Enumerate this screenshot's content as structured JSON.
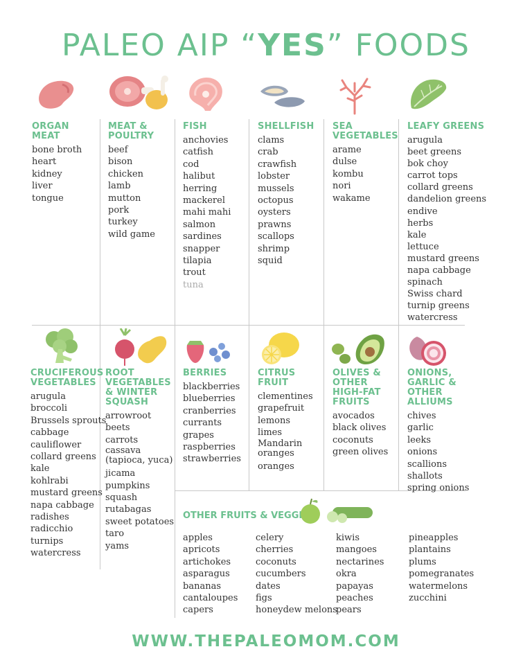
{
  "title": {
    "prefix": "PALEO AIP “",
    "emphasis": "YES",
    "suffix": "” FOODS"
  },
  "footer": "WWW.THEPALEOMOM.COM",
  "top_row": [
    {
      "heading": "ORGAN MEAT",
      "items": [
        "bone broth",
        "heart",
        "kidney",
        "liver",
        "tongue"
      ]
    },
    {
      "heading": "MEAT & POULTRY",
      "items": [
        "beef",
        "bison",
        "chicken",
        "lamb",
        "mutton",
        "pork",
        "turkey",
        "wild game"
      ]
    },
    {
      "heading": "FISH",
      "items": [
        "anchovies",
        "catfish",
        "cod",
        "halibut",
        "herring",
        "mackerel",
        "mahi mahi",
        "salmon",
        "sardines",
        "snapper",
        "tilapia",
        "trout",
        "tuna"
      ]
    },
    {
      "heading": "SHELLFISH",
      "items": [
        "clams",
        "crab",
        "crawfish",
        "lobster",
        "mussels",
        "octopus",
        "oysters",
        "prawns",
        "scallops",
        "shrimp",
        "squid"
      ]
    },
    {
      "heading": "SEA VEGETABLES",
      "items": [
        "arame",
        "dulse",
        "kombu",
        "nori",
        "wakame"
      ]
    },
    {
      "heading": "LEAFY GREENS",
      "items": [
        "arugula",
        "beet greens",
        "bok choy",
        "carrot tops",
        "collard greens",
        "dandelion greens",
        "endive",
        "herbs",
        "kale",
        "lettuce",
        "mustard greens",
        "napa cabbage",
        "spinach",
        "Swiss chard",
        "turnip greens",
        "watercress"
      ]
    }
  ],
  "bottom_row": [
    {
      "heading": "CRUCIFEROUS VEGETABLES",
      "items": [
        "arugula",
        "broccoli",
        "Brussels sprouts",
        "cabbage",
        "cauliflower",
        "collard greens",
        "kale",
        "kohlrabi",
        "mustard greens",
        "napa cabbage",
        "radishes",
        "radicchio",
        "turnips",
        "watercress"
      ]
    },
    {
      "heading": "ROOT VEGETABLES & WINTER SQUASH",
      "items": [
        "arrowroot",
        "beets",
        "carrots",
        "cassava (tapioca, yuca)",
        "jicama",
        "pumpkins",
        "squash",
        "rutabagas",
        "sweet potatoes",
        "taro",
        "yams"
      ]
    },
    {
      "heading": "BERRIES",
      "items": [
        "blackberries",
        "blueberries",
        "cranberries",
        "currants",
        "grapes",
        "raspberries",
        "strawberries"
      ]
    },
    {
      "heading": "CITRUS FRUIT",
      "items": [
        "clementines",
        "grapefruit",
        "lemons",
        "limes",
        "Mandarin oranges",
        "oranges"
      ]
    },
    {
      "heading": "OLIVES & OTHER HIGH-FAT FRUITS",
      "items": [
        "avocados",
        "black olives",
        "coconuts",
        "green olives"
      ]
    },
    {
      "heading": "ONIONS, GARLIC & OTHER ALLIUMS",
      "items": [
        "chives",
        "garlic",
        "leeks",
        "onions",
        "scallions",
        "shallots",
        "spring onions"
      ]
    }
  ],
  "other": {
    "heading": "OTHER FRUITS & VEGGIES",
    "columns": [
      [
        "apples",
        "apricots",
        "artichokes",
        "asparagus",
        "bananas",
        "cantaloupes",
        "capers"
      ],
      [
        "celery",
        "cherries",
        "coconuts",
        "cucumbers",
        "dates",
        "figs",
        "honeydew melons"
      ],
      [
        "kiwis",
        "mangoes",
        "nectarines",
        "okra",
        "papayas",
        "peaches",
        "pears"
      ],
      [
        "pineapples",
        "plantains",
        "plums",
        "pomegranates",
        "watermelons",
        "zucchini"
      ]
    ]
  },
  "icons": [
    "organ-meat-icon",
    "ham-drumstick-icon",
    "fish-steak-icon",
    "mussel-icon",
    "seaweed-icon",
    "lettuce-icon",
    "broccoli-icon",
    "beet-squash-icon",
    "berries-icon",
    "lemon-icon",
    "olive-avocado-icon",
    "onion-icon",
    "apple-cucumber-icon"
  ],
  "colors": {
    "accent_green": "#6cc08f",
    "text": "#333333",
    "divider": "#c8c8c8"
  }
}
